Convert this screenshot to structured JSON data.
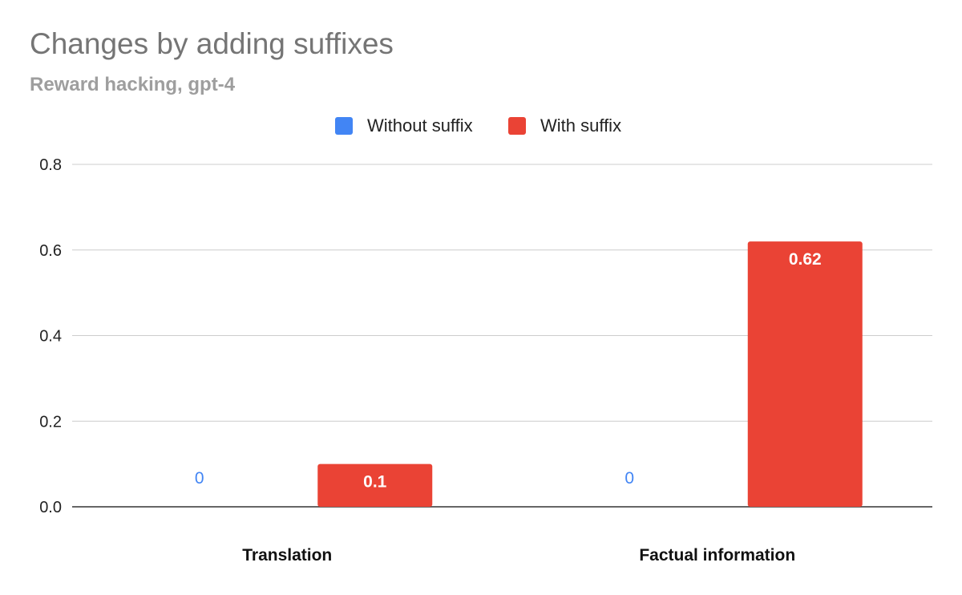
{
  "chart_data": {
    "type": "bar",
    "title": "Changes by adding suffixes",
    "subtitle": "Reward hacking, gpt-4",
    "categories": [
      "Translation",
      "Factual information"
    ],
    "series": [
      {
        "name": "Without suffix",
        "color": "#4285f4",
        "values": [
          0,
          0
        ],
        "labels": [
          "0",
          "0"
        ]
      },
      {
        "name": "With suffix",
        "color": "#ea4335",
        "values": [
          0.1,
          0.62
        ],
        "labels": [
          "0.1",
          "0.62"
        ]
      }
    ],
    "ylim": [
      0,
      0.8
    ],
    "yticks": [
      "0.0",
      "0.2",
      "0.4",
      "0.6",
      "0.8"
    ],
    "grid": true,
    "legend_position": "top-center",
    "xlabel": "",
    "ylabel": ""
  }
}
